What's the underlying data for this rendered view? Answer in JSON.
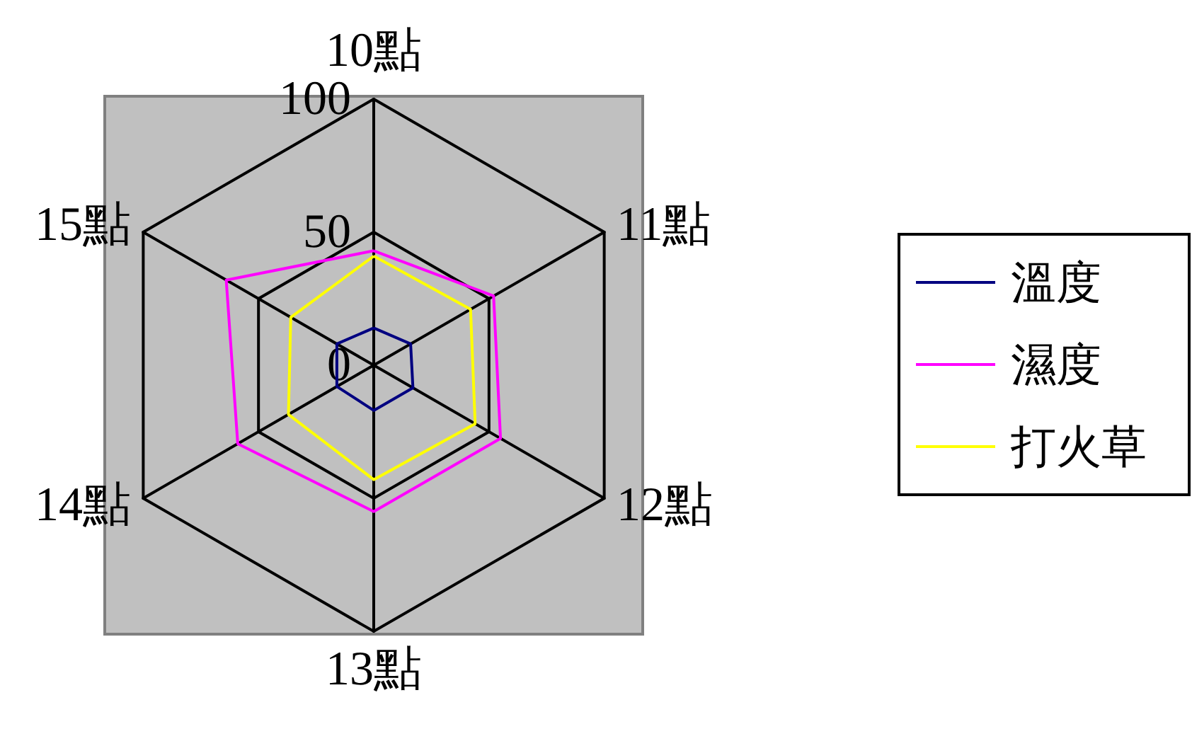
{
  "chart_data": {
    "type": "radar",
    "categories": [
      "10點",
      "11點",
      "12點",
      "13點",
      "14點",
      "15點"
    ],
    "series": [
      {
        "name": "溫度",
        "color": "#000080",
        "values": [
          14,
          16,
          17,
          17,
          16,
          16
        ]
      },
      {
        "name": "濕度",
        "color": "#ff00ff",
        "values": [
          43,
          52,
          55,
          55,
          59,
          64
        ]
      },
      {
        "name": "打火草",
        "color": "#ffff00",
        "values": [
          41,
          42,
          44,
          43,
          37,
          36
        ]
      }
    ],
    "ylim": [
      0,
      100
    ],
    "yticks": [
      0,
      50,
      100
    ],
    "grid": true,
    "legend": "right",
    "marker": "none"
  }
}
